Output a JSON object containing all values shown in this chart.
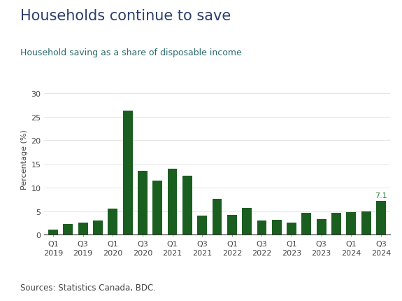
{
  "title": "Households continue to save",
  "subtitle": "Household saving as a share of disposable income",
  "source": "Sources: Statistics Canada, BDC.",
  "ylabel": "Percentage (%)",
  "bar_color": "#1a5e20",
  "last_bar_label": "7.1",
  "last_bar_label_color": "#2e7d32",
  "ylim": [
    0,
    32
  ],
  "yticks": [
    0,
    5,
    10,
    15,
    20,
    25,
    30
  ],
  "values": [
    1.0,
    2.2,
    2.6,
    3.0,
    5.5,
    26.3,
    13.5,
    11.5,
    14.0,
    12.5,
    4.1,
    7.6,
    4.2,
    5.7,
    3.0,
    3.1,
    2.6,
    4.7,
    3.3,
    4.6,
    4.8,
    5.0,
    7.1
  ],
  "tick_positions": [
    0,
    4,
    8,
    12,
    16,
    20,
    22
  ],
  "tick_labels_top": [
    "Q1",
    "Q1",
    "Q1",
    "Q1",
    "Q1",
    "Q1",
    "Q3"
  ],
  "tick_labels_bottom": [
    "2019",
    "2020",
    "2021",
    "2022",
    "2023",
    "2024",
    "2024"
  ],
  "extra_ticks_top": [
    "Q3",
    "Q3",
    "Q3",
    "Q3",
    "Q3"
  ],
  "extra_ticks_bottom": [
    "2019",
    "2020",
    "2021",
    "2022",
    "2023"
  ],
  "extra_tick_positions": [
    2,
    6,
    10,
    14,
    18
  ],
  "background_color": "#ffffff",
  "title_color": "#2c3e6b",
  "subtitle_color": "#2c6b6b",
  "axis_color": "#444444",
  "tick_color": "#444444",
  "source_color": "#444444",
  "grid_color": "#e0e0e0",
  "spine_color": "#333333",
  "title_fontsize": 15,
  "subtitle_fontsize": 9,
  "ylabel_fontsize": 8,
  "tick_fontsize": 8,
  "source_fontsize": 8.5,
  "bar_width": 0.65
}
